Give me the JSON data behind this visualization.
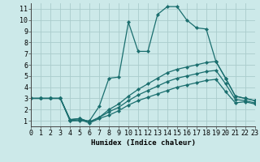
{
  "xlabel": "Humidex (Indice chaleur)",
  "bg_color": "#cce9e9",
  "grid_color": "#aacccc",
  "line_color": "#1a6e6e",
  "series": [
    {
      "x": [
        0,
        1,
        2,
        3,
        4,
        5,
        6,
        7,
        8,
        9,
        10,
        11,
        12,
        13,
        14,
        15,
        16,
        17,
        18,
        19,
        20,
        21,
        22,
        23
      ],
      "y": [
        3,
        3,
        3,
        3,
        1,
        1,
        1,
        2.3,
        4.8,
        4.9,
        9.8,
        7.2,
        7.2,
        10.5,
        11.2,
        11.2,
        10.0,
        9.3,
        9.2,
        6.3,
        4.8,
        3.2,
        3.0,
        2.8
      ]
    },
    {
      "x": [
        0,
        1,
        2,
        3,
        4,
        5,
        6,
        7,
        8,
        9,
        10,
        11,
        12,
        13,
        14,
        15,
        16,
        17,
        18,
        19,
        20,
        21,
        22,
        23
      ],
      "y": [
        3,
        3,
        3,
        3,
        1.1,
        1.2,
        0.9,
        1.3,
        2.0,
        2.5,
        3.2,
        3.8,
        4.3,
        4.8,
        5.3,
        5.6,
        5.8,
        6.0,
        6.2,
        6.3,
        4.8,
        3.2,
        3.0,
        2.8
      ]
    },
    {
      "x": [
        0,
        1,
        2,
        3,
        4,
        5,
        6,
        7,
        8,
        9,
        10,
        11,
        12,
        13,
        14,
        15,
        16,
        17,
        18,
        19,
        20,
        21,
        22,
        23
      ],
      "y": [
        3,
        3,
        3,
        3,
        1.1,
        1.2,
        0.9,
        1.3,
        1.8,
        2.2,
        2.8,
        3.3,
        3.7,
        4.1,
        4.5,
        4.8,
        5.0,
        5.2,
        5.4,
        5.5,
        4.3,
        2.9,
        2.8,
        2.6
      ]
    },
    {
      "x": [
        0,
        1,
        2,
        3,
        4,
        5,
        6,
        7,
        8,
        9,
        10,
        11,
        12,
        13,
        14,
        15,
        16,
        17,
        18,
        19,
        20,
        21,
        22,
        23
      ],
      "y": [
        3,
        3,
        3,
        3,
        1.0,
        1.1,
        0.8,
        1.2,
        1.5,
        1.9,
        2.4,
        2.8,
        3.1,
        3.4,
        3.7,
        4.0,
        4.2,
        4.4,
        4.6,
        4.7,
        3.6,
        2.6,
        2.7,
        2.5
      ]
    }
  ],
  "xlim": [
    0,
    23
  ],
  "ylim": [
    0.5,
    11.5
  ],
  "xticks": [
    0,
    1,
    2,
    3,
    4,
    5,
    6,
    7,
    8,
    9,
    10,
    11,
    12,
    13,
    14,
    15,
    16,
    17,
    18,
    19,
    20,
    21,
    22,
    23
  ],
  "yticks": [
    1,
    2,
    3,
    4,
    5,
    6,
    7,
    8,
    9,
    10,
    11
  ],
  "xlabel_fontsize": 6.5,
  "tick_fontsize": 6.0
}
